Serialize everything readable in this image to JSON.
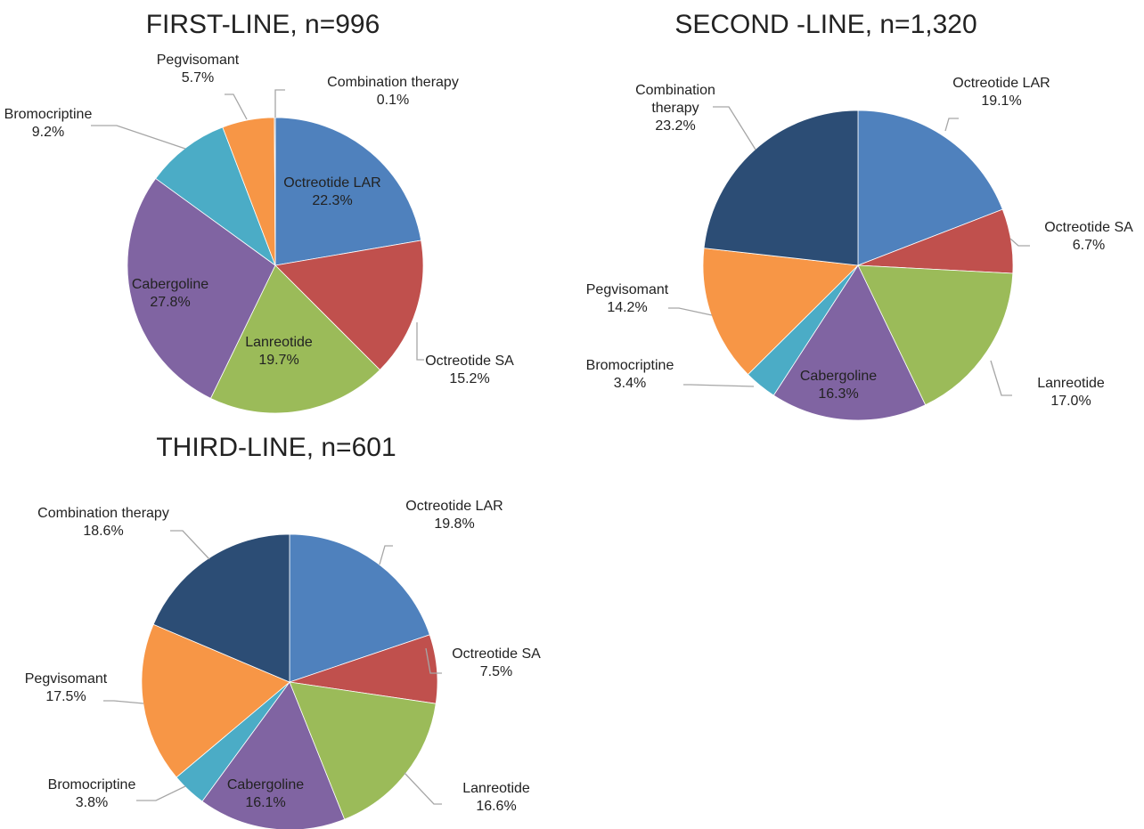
{
  "chart_data": [
    {
      "type": "pie",
      "title": "FIRST-LINE, n=996",
      "slices": [
        {
          "name": "Octreotide LAR",
          "value": 22.3,
          "label": "22.3%",
          "color": "#4F81BD"
        },
        {
          "name": "Octreotide SA",
          "value": 15.2,
          "label": "15.2%",
          "color": "#C0504D"
        },
        {
          "name": "Lanreotide",
          "value": 19.7,
          "label": "19.7%",
          "color": "#9BBB59"
        },
        {
          "name": "Cabergoline",
          "value": 27.8,
          "label": "27.8%",
          "color": "#8064A2"
        },
        {
          "name": "Bromocriptine",
          "value": 9.2,
          "label": "9.2%",
          "color": "#4BACC6"
        },
        {
          "name": "Pegvisomant",
          "value": 5.7,
          "label": "5.7%",
          "color": "#F79646"
        },
        {
          "name": "Combination therapy",
          "value": 0.1,
          "label": "0.1%",
          "color": "#2C4D75"
        }
      ]
    },
    {
      "type": "pie",
      "title": "SECOND -LINE, n=1,320",
      "slices": [
        {
          "name": "Octreotide LAR",
          "value": 19.1,
          "label": "19.1%",
          "color": "#4F81BD"
        },
        {
          "name": "Octreotide SA",
          "value": 6.7,
          "label": "6.7%",
          "color": "#C0504D"
        },
        {
          "name": "Lanreotide",
          "value": 17.0,
          "label": "17.0%",
          "color": "#9BBB59"
        },
        {
          "name": "Cabergoline",
          "value": 16.3,
          "label": "16.3%",
          "color": "#8064A2"
        },
        {
          "name": "Bromocriptine",
          "value": 3.4,
          "label": "3.4%",
          "color": "#4BACC6"
        },
        {
          "name": "Pegvisomant",
          "value": 14.2,
          "label": "14.2%",
          "color": "#F79646"
        },
        {
          "name": "Combination therapy",
          "value": 23.2,
          "label": "23.2%",
          "color": "#2C4D75"
        }
      ]
    },
    {
      "type": "pie",
      "title": "THIRD-LINE, n=601",
      "slices": [
        {
          "name": "Octreotide LAR",
          "value": 19.8,
          "label": "19.8%",
          "color": "#4F81BD"
        },
        {
          "name": "Octreotide SA",
          "value": 7.5,
          "label": "7.5%",
          "color": "#C0504D"
        },
        {
          "name": "Lanreotide",
          "value": 16.6,
          "label": "16.6%",
          "color": "#9BBB59"
        },
        {
          "name": "Cabergoline",
          "value": 16.1,
          "label": "16.1%",
          "color": "#8064A2"
        },
        {
          "name": "Bromocriptine",
          "value": 3.8,
          "label": "3.8%",
          "color": "#4BACC6"
        },
        {
          "name": "Pegvisomant",
          "value": 17.5,
          "label": "17.5%",
          "color": "#F79646"
        },
        {
          "name": "Combination therapy",
          "value": 18.6,
          "label": "18.6%",
          "color": "#2C4D75"
        }
      ]
    }
  ]
}
